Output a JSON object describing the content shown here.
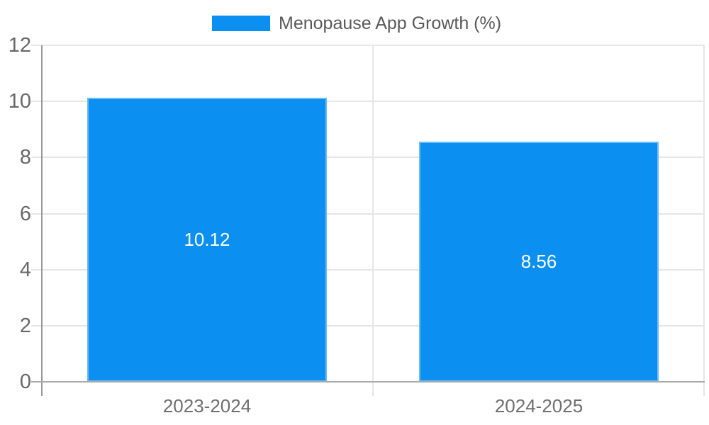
{
  "legend": {
    "label": "Menopause App Growth (%)"
  },
  "chart_data": {
    "type": "bar",
    "title": "",
    "xlabel": "",
    "ylabel": "",
    "categories": [
      "2023-2024",
      "2024-2025"
    ],
    "series": [
      {
        "name": "Menopause App Growth (%)",
        "values": [
          10.12,
          8.56
        ],
        "color": "#0b90f2"
      }
    ],
    "value_labels": [
      "10.12",
      "8.56"
    ],
    "value_label_color": "#ffffff",
    "ylim": [
      0,
      12
    ],
    "yticks": [
      0,
      2,
      4,
      6,
      8,
      10,
      12
    ],
    "grid": true,
    "legend_position": "top-center"
  },
  "colors": {
    "bar_fill": "#0b90f2",
    "gridline": "#e6e6e6",
    "axis_line_left": "#999999",
    "axis_line_bottom": "#a9a9a9",
    "y_tick_label": "#686868",
    "x_label": "#6e6e6e",
    "legend_text": "#595959",
    "background": "#ffffff"
  }
}
